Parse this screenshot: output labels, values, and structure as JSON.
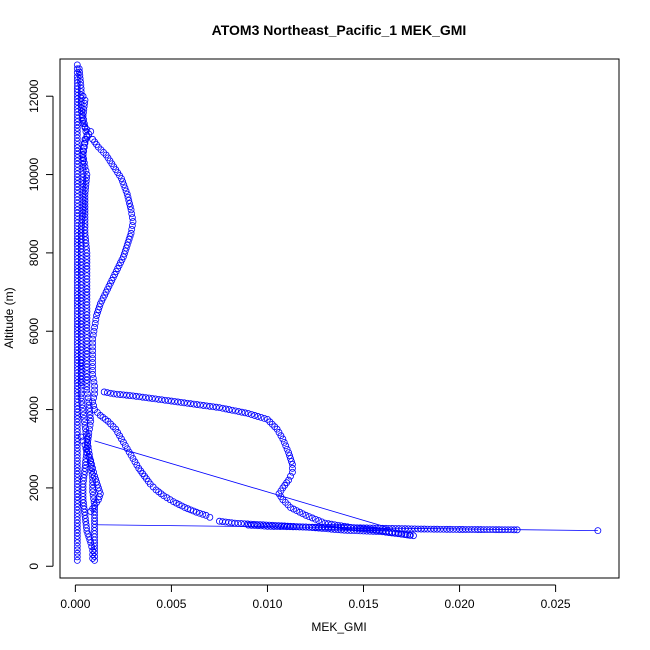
{
  "chart_data": {
    "type": "scatter",
    "title": "ATOM3 Northeast_Pacific_1 MEK_GMI",
    "xlabel": "MEK_GMI",
    "ylabel": "Altitude (m)",
    "xlim": [
      -0.0008,
      0.0283
    ],
    "ylim": [
      -300,
      12950
    ],
    "xticks": [
      0.0,
      0.005,
      0.01,
      0.015,
      0.02,
      0.025
    ],
    "xtick_labels": [
      "0.000",
      "0.005",
      "0.010",
      "0.015",
      "0.020",
      "0.025"
    ],
    "yticks": [
      0,
      2000,
      4000,
      6000,
      8000,
      10000,
      12000
    ],
    "ytick_labels": [
      "0",
      "2000",
      "4000",
      "6000",
      "8000",
      "10000",
      "12000"
    ],
    "grid": false,
    "marker": "open-circle",
    "color": "#0000ff",
    "series": [
      {
        "points": [
          [
            0.0001,
            150
          ],
          [
            0.0001,
            600
          ],
          [
            0.0001,
            1100
          ],
          [
            0.0001,
            1600
          ],
          [
            0.0001,
            2100
          ],
          [
            0.0001,
            2600
          ],
          [
            0.0001,
            3100
          ],
          [
            0.0001,
            3600
          ],
          [
            0.0001,
            4100
          ],
          [
            0.0001,
            4600
          ],
          [
            0.0001,
            5100
          ],
          [
            0.0001,
            5600
          ],
          [
            0.0001,
            6100
          ],
          [
            0.0001,
            6600
          ],
          [
            0.0001,
            7100
          ],
          [
            0.0001,
            7600
          ],
          [
            0.0001,
            8100
          ],
          [
            0.0001,
            8600
          ],
          [
            0.0001,
            9100
          ],
          [
            0.0001,
            9600
          ],
          [
            0.0001,
            10100
          ],
          [
            0.0001,
            10600
          ],
          [
            0.0001,
            11100
          ],
          [
            0.0001,
            11600
          ],
          [
            0.0001,
            12100
          ],
          [
            0.0001,
            12500
          ],
          [
            0.0001,
            12800
          ],
          [
            0.0002,
            12700
          ],
          [
            0.0003,
            12200
          ],
          [
            0.0003,
            11700
          ],
          [
            0.0004,
            11300
          ],
          [
            0.0006,
            11150
          ],
          [
            0.0008,
            11100
          ],
          [
            0.0005,
            10900
          ],
          [
            0.0004,
            10600
          ],
          [
            0.0004,
            10100
          ],
          [
            0.0004,
            9600
          ],
          [
            0.0004,
            9100
          ],
          [
            0.0003,
            8600
          ],
          [
            0.0003,
            8100
          ],
          [
            0.0003,
            7600
          ],
          [
            0.0003,
            7100
          ],
          [
            0.0003,
            6600
          ],
          [
            0.0003,
            6100
          ],
          [
            0.0003,
            5600
          ],
          [
            0.0003,
            5100
          ],
          [
            0.0003,
            4700
          ],
          [
            0.0004,
            12000
          ],
          [
            0.0005,
            11900
          ],
          [
            0.0004,
            11500
          ],
          [
            0.0005,
            11200
          ],
          [
            0.0006,
            11000
          ],
          [
            0.0005,
            10800
          ],
          [
            0.0004,
            10500
          ],
          [
            0.0005,
            10200
          ],
          [
            0.0006,
            10000
          ],
          [
            0.0005,
            9500
          ],
          [
            0.0005,
            9000
          ],
          [
            0.0005,
            8500
          ],
          [
            0.0006,
            8000
          ],
          [
            0.0006,
            7500
          ],
          [
            0.0006,
            7000
          ],
          [
            0.0006,
            6500
          ],
          [
            0.0006,
            6000
          ],
          [
            0.0006,
            5500
          ],
          [
            0.0006,
            5000
          ],
          [
            0.0006,
            4500
          ],
          [
            0.0007,
            4200
          ],
          [
            0.0008,
            3700
          ],
          [
            0.0007,
            3400
          ],
          [
            0.0006,
            3000
          ],
          [
            0.0005,
            2500
          ],
          [
            0.0004,
            2100
          ],
          [
            0.0004,
            1700
          ],
          [
            0.0005,
            1300
          ],
          [
            0.0006,
            900
          ],
          [
            0.0008,
            600
          ],
          [
            0.0009,
            400
          ],
          [
            0.0009,
            200
          ],
          [
            0.0009,
            10900
          ],
          [
            0.0012,
            10700
          ],
          [
            0.0016,
            10500
          ],
          [
            0.002,
            10200
          ],
          [
            0.0024,
            9900
          ],
          [
            0.0027,
            9500
          ],
          [
            0.0029,
            9100
          ],
          [
            0.003,
            8800
          ],
          [
            0.0029,
            8500
          ],
          [
            0.0027,
            8200
          ],
          [
            0.0025,
            7900
          ],
          [
            0.0022,
            7600
          ],
          [
            0.0019,
            7300
          ],
          [
            0.0016,
            7000
          ],
          [
            0.0013,
            6700
          ],
          [
            0.0011,
            6400
          ],
          [
            0.001,
            6100
          ],
          [
            0.0009,
            5800
          ],
          [
            0.0009,
            5500
          ],
          [
            0.0009,
            5200
          ],
          [
            0.0009,
            4900
          ],
          [
            0.001,
            4600
          ],
          [
            0.001,
            4400
          ],
          [
            0.0009,
            4200
          ],
          [
            0.001,
            4000
          ],
          [
            0.0013,
            3850
          ],
          [
            0.0017,
            3700
          ],
          [
            0.0021,
            3500
          ],
          [
            0.0024,
            3250
          ],
          [
            0.0027,
            3000
          ],
          [
            0.003,
            2750
          ],
          [
            0.0033,
            2500
          ],
          [
            0.0036,
            2300
          ],
          [
            0.0039,
            2100
          ],
          [
            0.0042,
            1950
          ],
          [
            0.0046,
            1800
          ],
          [
            0.0051,
            1650
          ],
          [
            0.0057,
            1500
          ],
          [
            0.0063,
            1380
          ],
          [
            0.0068,
            1300
          ],
          [
            0.007,
            1250
          ],
          [
            0.0003,
            3300
          ],
          [
            0.0005,
            3100
          ],
          [
            0.0006,
            2900
          ],
          [
            0.0008,
            2700
          ],
          [
            0.0009,
            2500
          ],
          [
            0.001,
            2300
          ],
          [
            0.0011,
            2150
          ],
          [
            0.0012,
            2000
          ],
          [
            0.0013,
            1850
          ],
          [
            0.0012,
            1700
          ],
          [
            0.001,
            1550
          ],
          [
            0.0008,
            1400
          ],
          [
            0.0003,
            5200
          ],
          [
            0.0003,
            4600
          ],
          [
            0.0003,
            4300
          ],
          [
            0.0004,
            3950
          ],
          [
            0.0005,
            3600
          ],
          [
            0.0006,
            3250
          ],
          [
            0.0007,
            2950
          ],
          [
            0.0008,
            2600
          ],
          [
            0.0009,
            2250
          ],
          [
            0.0009,
            1900
          ],
          [
            0.001,
            1550
          ],
          [
            0.001,
            1150
          ],
          [
            0.001,
            750
          ],
          [
            0.001,
            350
          ],
          [
            0.001,
            150
          ],
          [
            0.009,
            1050
          ],
          [
            0.01,
            1020
          ],
          [
            0.012,
            1000
          ],
          [
            0.014,
            990
          ],
          [
            0.016,
            970
          ],
          [
            0.018,
            950
          ],
          [
            0.02,
            940
          ],
          [
            0.023,
            930
          ],
          [
            0.0272,
            910
          ],
          [
            0.0015,
            4450
          ],
          [
            0.002,
            4400
          ],
          [
            0.003,
            4350
          ],
          [
            0.0045,
            4250
          ],
          [
            0.006,
            4150
          ],
          [
            0.0075,
            4050
          ],
          [
            0.009,
            3900
          ],
          [
            0.01,
            3750
          ],
          [
            0.0105,
            3500
          ],
          [
            0.0108,
            3250
          ],
          [
            0.0111,
            2900
          ],
          [
            0.0113,
            2600
          ],
          [
            0.0113,
            2400
          ],
          [
            0.0111,
            2200
          ],
          [
            0.0108,
            2000
          ],
          [
            0.0106,
            1850
          ],
          [
            0.0108,
            1700
          ],
          [
            0.0112,
            1500
          ],
          [
            0.012,
            1300
          ],
          [
            0.013,
            1100
          ],
          [
            0.0145,
            980
          ],
          [
            0.016,
            900
          ],
          [
            0.017,
            820
          ],
          [
            0.0176,
            780
          ],
          [
            0.016,
            880
          ],
          [
            0.014,
            920
          ],
          [
            0.012,
            1000
          ],
          [
            0.0093,
            1070
          ],
          [
            0.0083,
            1100
          ],
          [
            0.0075,
            1150
          ]
        ]
      }
    ],
    "lines": [
      [
        [
          0.001,
          3200
        ],
        [
          0.0164,
          970
        ]
      ],
      [
        [
          0.001,
          1060
        ],
        [
          0.0272,
          910
        ]
      ]
    ]
  }
}
